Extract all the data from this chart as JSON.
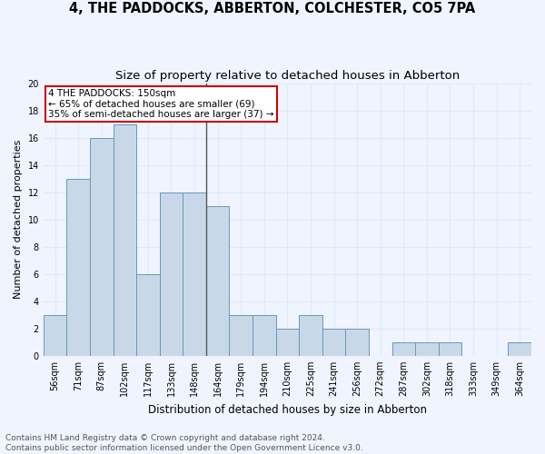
{
  "title": "4, THE PADDOCKS, ABBERTON, COLCHESTER, CO5 7PA",
  "subtitle": "Size of property relative to detached houses in Abberton",
  "xlabel": "Distribution of detached houses by size in Abberton",
  "ylabel": "Number of detached properties",
  "footnote1": "Contains HM Land Registry data © Crown copyright and database right 2024.",
  "footnote2": "Contains public sector information licensed under the Open Government Licence v3.0.",
  "categories": [
    "56sqm",
    "71sqm",
    "87sqm",
    "102sqm",
    "117sqm",
    "133sqm",
    "148sqm",
    "164sqm",
    "179sqm",
    "194sqm",
    "210sqm",
    "225sqm",
    "241sqm",
    "256sqm",
    "272sqm",
    "287sqm",
    "302sqm",
    "318sqm",
    "333sqm",
    "349sqm",
    "364sqm"
  ],
  "values": [
    3,
    13,
    16,
    17,
    6,
    12,
    12,
    11,
    3,
    3,
    2,
    3,
    2,
    2,
    0,
    1,
    1,
    1,
    0,
    0,
    1
  ],
  "bar_color": "#c8d8e8",
  "bar_edge_color": "#6699bb",
  "property_label": "4 THE PADDOCKS: 150sqm",
  "annotation_line1": "← 65% of detached houses are smaller (69)",
  "annotation_line2": "35% of semi-detached houses are larger (37) →",
  "annotation_box_color": "#cc0000",
  "vline_color": "#555555",
  "grid_color": "#dde8ff",
  "bg_color": "#f0f4ff",
  "ylim": [
    0,
    20
  ],
  "yticks": [
    0,
    2,
    4,
    6,
    8,
    10,
    12,
    14,
    16,
    18,
    20
  ],
  "title_fontsize": 10.5,
  "subtitle_fontsize": 9.5,
  "xlabel_fontsize": 8.5,
  "ylabel_fontsize": 8,
  "tick_fontsize": 7,
  "annotation_fontsize": 7.5,
  "footnote_fontsize": 6.5
}
